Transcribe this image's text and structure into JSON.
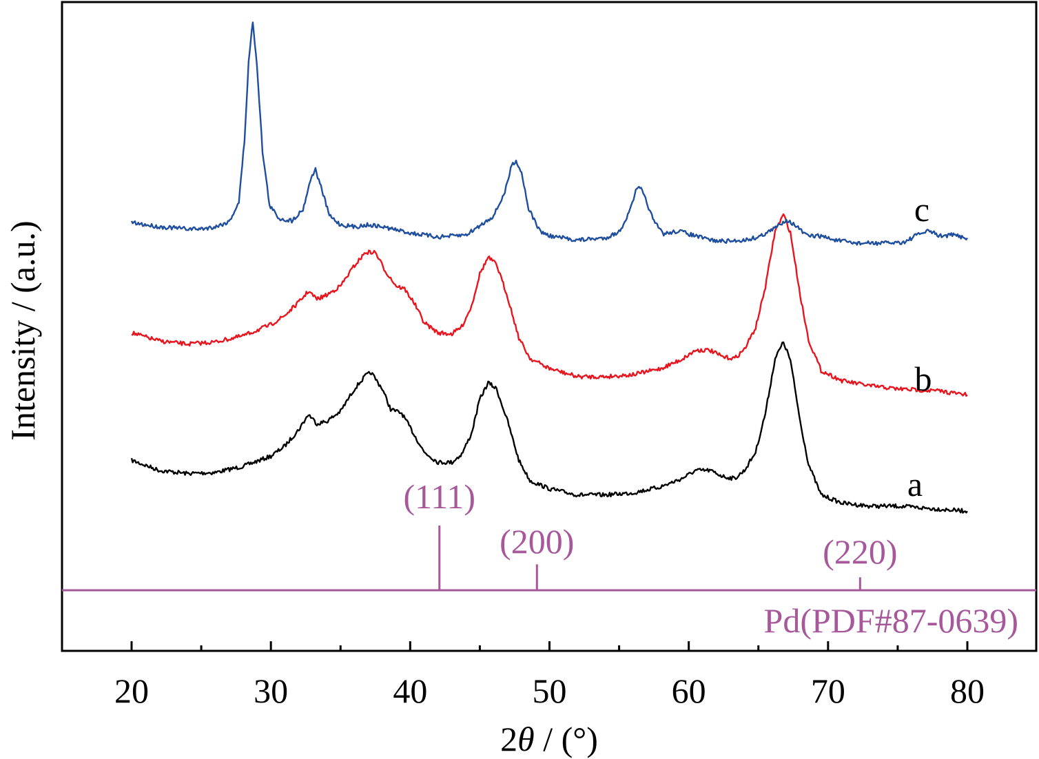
{
  "chart_data": {
    "type": "line",
    "xlabel_prefix": "2",
    "xlabel_symbol": "θ",
    "xlabel_suffix": " / (°)",
    "ylabel": "Intensity / (a.u.)",
    "xlim": [
      15,
      85
    ],
    "xticks": [
      20,
      30,
      40,
      50,
      60,
      70,
      80
    ],
    "series": [
      {
        "name": "a",
        "color": "#000000",
        "points": [
          [
            20,
            0.62
          ],
          [
            22,
            0.52
          ],
          [
            24,
            0.49
          ],
          [
            26,
            0.5
          ],
          [
            28,
            0.56
          ],
          [
            30,
            0.66
          ],
          [
            31,
            0.76
          ],
          [
            32,
            0.92
          ],
          [
            32.7,
            1.07
          ],
          [
            33.3,
            0.98
          ],
          [
            34,
            1.0
          ],
          [
            35,
            1.1
          ],
          [
            36,
            1.32
          ],
          [
            36.8,
            1.45
          ],
          [
            37.2,
            1.48
          ],
          [
            38,
            1.32
          ],
          [
            38.6,
            1.12
          ],
          [
            39.4,
            1.08
          ],
          [
            40,
            0.94
          ],
          [
            41,
            0.7
          ],
          [
            42,
            0.6
          ],
          [
            43,
            0.6
          ],
          [
            43.7,
            0.68
          ],
          [
            44.4,
            0.88
          ],
          [
            45,
            1.22
          ],
          [
            45.6,
            1.38
          ],
          [
            46.2,
            1.32
          ],
          [
            47,
            1.0
          ],
          [
            47.8,
            0.62
          ],
          [
            48.6,
            0.42
          ],
          [
            50,
            0.34
          ],
          [
            52,
            0.28
          ],
          [
            54,
            0.28
          ],
          [
            56,
            0.3
          ],
          [
            58,
            0.36
          ],
          [
            59.5,
            0.44
          ],
          [
            60.5,
            0.52
          ],
          [
            61.5,
            0.52
          ],
          [
            62.5,
            0.46
          ],
          [
            63.3,
            0.44
          ],
          [
            64,
            0.52
          ],
          [
            64.8,
            0.7
          ],
          [
            65.5,
            1.08
          ],
          [
            66.2,
            1.62
          ],
          [
            66.8,
            1.78
          ],
          [
            67.3,
            1.6
          ],
          [
            68,
            1.0
          ],
          [
            68.6,
            0.58
          ],
          [
            69.5,
            0.28
          ],
          [
            71,
            0.2
          ],
          [
            73,
            0.17
          ],
          [
            75,
            0.17
          ],
          [
            78,
            0.14
          ],
          [
            80,
            0.12
          ]
        ]
      },
      {
        "name": "b",
        "color": "#e8141e",
        "points": [
          [
            20,
            1.87
          ],
          [
            22,
            1.79
          ],
          [
            24,
            1.76
          ],
          [
            26,
            1.78
          ],
          [
            28,
            1.84
          ],
          [
            30,
            1.95
          ],
          [
            31,
            2.04
          ],
          [
            32,
            2.17
          ],
          [
            32.7,
            2.28
          ],
          [
            33.3,
            2.2
          ],
          [
            34,
            2.24
          ],
          [
            35,
            2.33
          ],
          [
            36,
            2.53
          ],
          [
            36.8,
            2.66
          ],
          [
            37.5,
            2.66
          ],
          [
            38.2,
            2.48
          ],
          [
            39,
            2.33
          ],
          [
            39.6,
            2.3
          ],
          [
            40.3,
            2.16
          ],
          [
            41,
            1.97
          ],
          [
            42,
            1.87
          ],
          [
            43,
            1.86
          ],
          [
            43.7,
            1.93
          ],
          [
            44.4,
            2.13
          ],
          [
            45,
            2.45
          ],
          [
            45.6,
            2.61
          ],
          [
            46.2,
            2.54
          ],
          [
            47,
            2.22
          ],
          [
            47.8,
            1.82
          ],
          [
            48.6,
            1.62
          ],
          [
            50,
            1.52
          ],
          [
            52,
            1.44
          ],
          [
            54,
            1.44
          ],
          [
            56,
            1.46
          ],
          [
            58,
            1.52
          ],
          [
            59.5,
            1.61
          ],
          [
            60.5,
            1.7
          ],
          [
            61.5,
            1.7
          ],
          [
            62.5,
            1.63
          ],
          [
            63.3,
            1.62
          ],
          [
            64,
            1.71
          ],
          [
            64.8,
            1.92
          ],
          [
            65.5,
            2.32
          ],
          [
            66.2,
            2.87
          ],
          [
            66.8,
            3.03
          ],
          [
            67.3,
            2.85
          ],
          [
            68,
            2.24
          ],
          [
            68.6,
            1.8
          ],
          [
            69.5,
            1.5
          ],
          [
            71,
            1.4
          ],
          [
            73,
            1.35
          ],
          [
            75,
            1.32
          ],
          [
            78,
            1.3
          ],
          [
            80,
            1.26
          ]
        ]
      },
      {
        "name": "c",
        "color": "#1f4e9e",
        "points": [
          [
            20,
            2.95
          ],
          [
            22,
            2.91
          ],
          [
            24,
            2.89
          ],
          [
            25,
            2.89
          ],
          [
            26,
            2.91
          ],
          [
            27,
            2.96
          ],
          [
            27.7,
            3.15
          ],
          [
            28.1,
            3.75
          ],
          [
            28.4,
            4.52
          ],
          [
            28.7,
            4.93
          ],
          [
            29.0,
            4.5
          ],
          [
            29.4,
            3.65
          ],
          [
            29.9,
            3.12
          ],
          [
            30.6,
            2.99
          ],
          [
            31.5,
            2.97
          ],
          [
            32.3,
            3.08
          ],
          [
            32.9,
            3.4
          ],
          [
            33.2,
            3.47
          ],
          [
            33.6,
            3.3
          ],
          [
            34.2,
            3.02
          ],
          [
            35,
            2.93
          ],
          [
            36,
            2.91
          ],
          [
            37,
            2.93
          ],
          [
            38,
            2.91
          ],
          [
            39,
            2.88
          ],
          [
            40,
            2.85
          ],
          [
            42,
            2.81
          ],
          [
            44,
            2.83
          ],
          [
            45,
            2.92
          ],
          [
            46,
            3.02
          ],
          [
            46.8,
            3.25
          ],
          [
            47.3,
            3.52
          ],
          [
            47.6,
            3.56
          ],
          [
            48,
            3.44
          ],
          [
            48.5,
            3.09
          ],
          [
            49.3,
            2.87
          ],
          [
            50,
            2.82
          ],
          [
            52,
            2.78
          ],
          [
            54,
            2.8
          ],
          [
            55,
            2.86
          ],
          [
            55.7,
            3.04
          ],
          [
            56.2,
            3.26
          ],
          [
            56.5,
            3.3
          ],
          [
            56.9,
            3.18
          ],
          [
            57.5,
            2.96
          ],
          [
            58.2,
            2.84
          ],
          [
            59.3,
            2.87
          ],
          [
            60,
            2.84
          ],
          [
            61,
            2.8
          ],
          [
            62,
            2.77
          ],
          [
            63,
            2.77
          ],
          [
            64,
            2.78
          ],
          [
            65,
            2.81
          ],
          [
            66,
            2.88
          ],
          [
            67,
            2.98
          ],
          [
            67.6,
            2.93
          ],
          [
            68.5,
            2.82
          ],
          [
            69.5,
            2.82
          ],
          [
            70.5,
            2.78
          ],
          [
            72,
            2.75
          ],
          [
            74,
            2.75
          ],
          [
            75.5,
            2.76
          ],
          [
            76.5,
            2.84
          ],
          [
            77.3,
            2.87
          ],
          [
            78,
            2.82
          ],
          [
            79,
            2.83
          ],
          [
            80,
            2.8
          ]
        ]
      }
    ],
    "reference": {
      "name": "Pd(PDF#87-0639)",
      "color": "#a6589b",
      "peaks": [
        {
          "x": 42.1,
          "label": "(111)",
          "intensity": 100
        },
        {
          "x": 49.1,
          "label": "(200)",
          "intensity": 40
        },
        {
          "x": 72.3,
          "label": "(220)",
          "intensity": 20
        }
      ]
    }
  }
}
